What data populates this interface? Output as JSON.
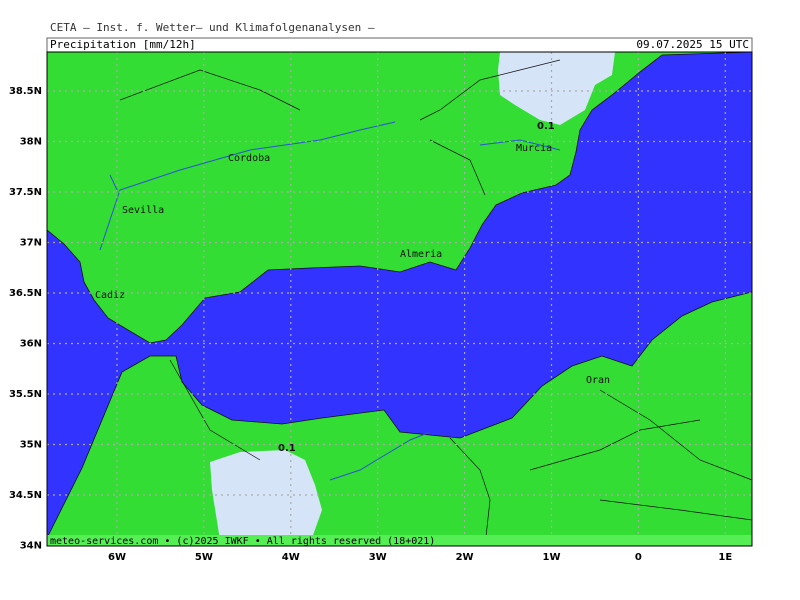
{
  "header": {
    "title": "CETA – Inst. f. Wetter– und Klimafolgenanalysen –",
    "product": "Precipitation [mm/12h]",
    "date": "09.07.2025 15 UTC"
  },
  "lat_labels": [
    "38.5N",
    "38N",
    "37.5N",
    "37N",
    "36.5N",
    "36N",
    "35.5N",
    "35N",
    "34.5N",
    "34N"
  ],
  "lon_labels": [
    "6W",
    "5W",
    "4W",
    "3W",
    "2W",
    "1W",
    "0",
    "1E"
  ],
  "places": [
    "Cordoba",
    "Sevilla",
    "Murcia",
    "Almeria",
    "Cadiz",
    "Oran"
  ],
  "contour_labels": [
    "0.1",
    "0.1"
  ],
  "footer": "meteo-services.com • (c)2025 IWKF • All rights reserved (18+021)"
}
